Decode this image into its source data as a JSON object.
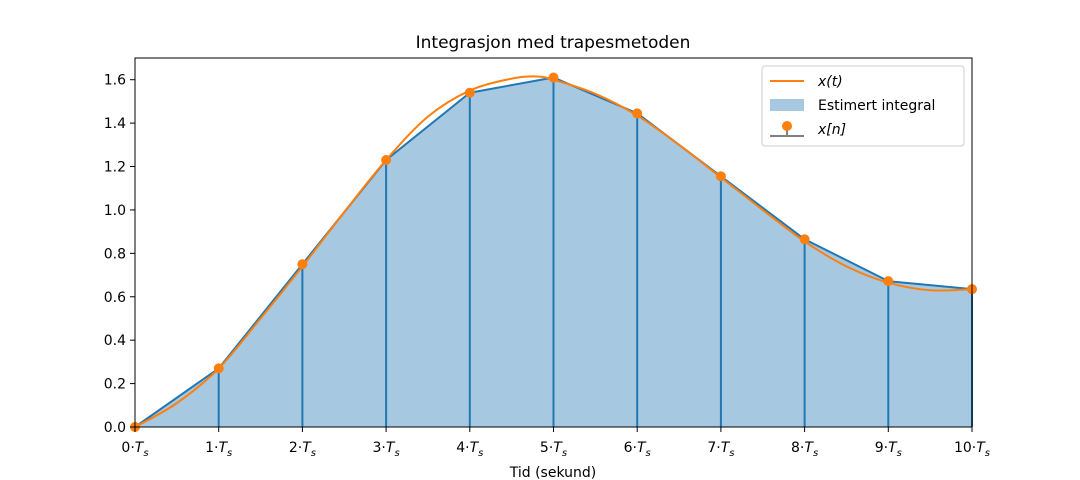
{
  "chart_data": {
    "type": "area",
    "title": "Integrasjon med trapesmetoden",
    "xlabel": "Tid (sekund)",
    "ylabel": "",
    "xlim": [
      0,
      10
    ],
    "ylim": [
      0,
      1.7
    ],
    "x_ticks": [
      {
        "value": 0,
        "prefix": "0·",
        "symbol": "T",
        "sub": "s"
      },
      {
        "value": 1,
        "prefix": "1·",
        "symbol": "T",
        "sub": "s"
      },
      {
        "value": 2,
        "prefix": "2·",
        "symbol": "T",
        "sub": "s"
      },
      {
        "value": 3,
        "prefix": "3·",
        "symbol": "T",
        "sub": "s"
      },
      {
        "value": 4,
        "prefix": "4·",
        "symbol": "T",
        "sub": "s"
      },
      {
        "value": 5,
        "prefix": "5·",
        "symbol": "T",
        "sub": "s"
      },
      {
        "value": 6,
        "prefix": "6·",
        "symbol": "T",
        "sub": "s"
      },
      {
        "value": 7,
        "prefix": "7·",
        "symbol": "T",
        "sub": "s"
      },
      {
        "value": 8,
        "prefix": "8·",
        "symbol": "T",
        "sub": "s"
      },
      {
        "value": 9,
        "prefix": "9·",
        "symbol": "T",
        "sub": "s"
      },
      {
        "value": 10,
        "prefix": "10·",
        "symbol": "T",
        "sub": "s"
      }
    ],
    "y_ticks": [
      "0.0",
      "0.2",
      "0.4",
      "0.6",
      "0.8",
      "1.0",
      "1.2",
      "1.4",
      "1.6"
    ],
    "samples": {
      "name": "x[n]",
      "x": [
        0,
        1,
        2,
        3,
        4,
        5,
        6,
        7,
        8,
        9,
        10
      ],
      "y": [
        0.0,
        0.27,
        0.75,
        1.23,
        1.54,
        1.61,
        1.445,
        1.155,
        0.865,
        0.672,
        0.635
      ]
    },
    "continuous": {
      "name": "x(t)",
      "x": [
        0,
        0.5,
        1,
        1.5,
        2,
        2.5,
        3,
        3.5,
        4,
        4.5,
        4.8,
        5,
        5.5,
        6,
        6.5,
        7,
        7.5,
        8,
        8.5,
        9,
        9.5,
        10
      ],
      "y": [
        0.0,
        0.11,
        0.27,
        0.5,
        0.74,
        0.99,
        1.23,
        1.43,
        1.55,
        1.605,
        1.615,
        1.6,
        1.535,
        1.435,
        1.3,
        1.15,
        1.0,
        0.855,
        0.74,
        0.665,
        0.63,
        0.635
      ]
    },
    "area": {
      "name": "Estimert integral"
    },
    "legend": {
      "placement": "top-right",
      "entries": [
        {
          "label": "x(t)",
          "kind": "line",
          "italic": true
        },
        {
          "label": "Estimert integral",
          "kind": "patch",
          "italic": false
        },
        {
          "label": "x[n]",
          "kind": "stem",
          "italic": true
        }
      ]
    },
    "colors": {
      "line": "#ff7f0e",
      "marker": "#ff7f0e",
      "stem": "#1f77b4",
      "fill": "#a6c8e0",
      "stem_legend": "#808080"
    },
    "grid": false
  }
}
